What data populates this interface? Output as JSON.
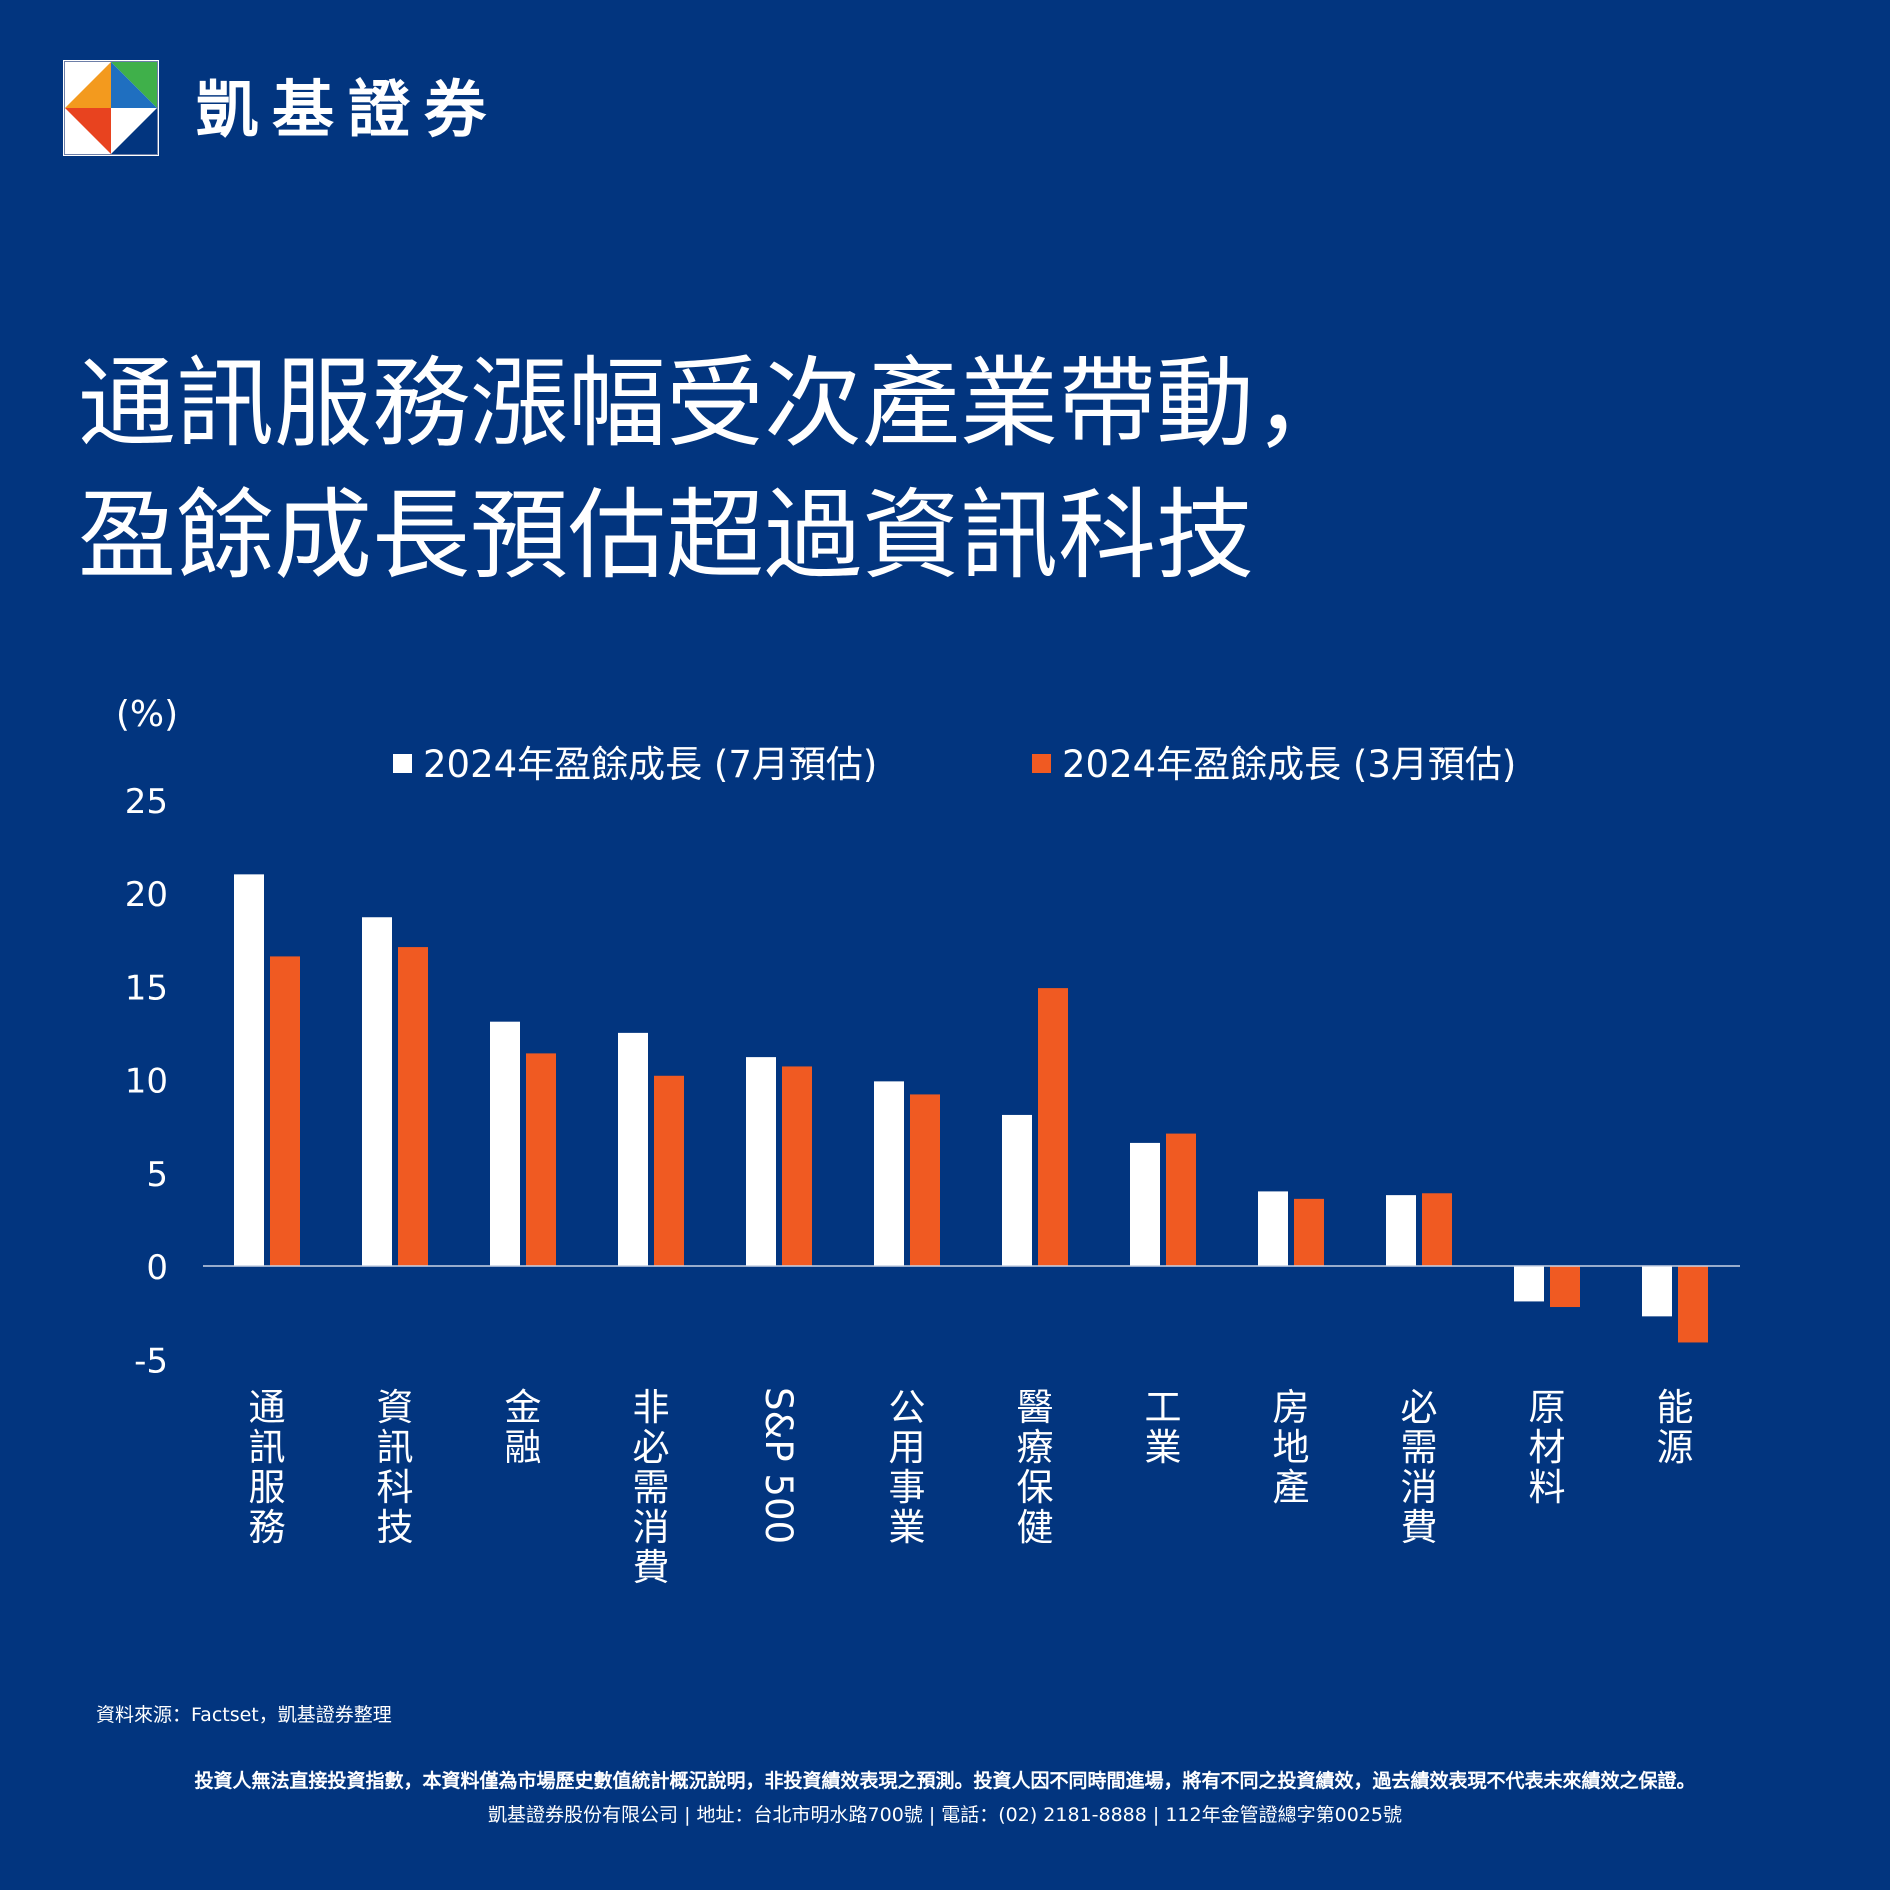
{
  "brand": {
    "name": "凱基證券"
  },
  "headline": {
    "line1": "通訊服務漲幅受次產業帶動，",
    "line2": "盈餘成長預估超過資訊科技"
  },
  "colors": {
    "background": "#02357f",
    "series_july": "#ffffff",
    "series_march": "#f05a22"
  },
  "chart_data": {
    "type": "bar",
    "title": "",
    "unit_label": "(%)",
    "xlabel": "",
    "ylabel": "",
    "ylim": [
      -5,
      25
    ],
    "yticks": [
      25,
      20,
      15,
      10,
      5,
      0,
      -5
    ],
    "grid": false,
    "legend_position": "top",
    "categories": [
      "通訊服務",
      "資訊科技",
      "金融",
      "非必需消費",
      "S&P 500",
      "公用事業",
      "醫療保健",
      "工業",
      "房地產",
      "必需消費",
      "原材料",
      "能源"
    ],
    "series": [
      {
        "name": "2024年盈餘成長 (7月預估)",
        "color": "#ffffff",
        "values": [
          21.0,
          18.7,
          13.1,
          12.5,
          11.2,
          9.9,
          8.1,
          6.6,
          4.0,
          3.8,
          -1.9,
          -2.7
        ]
      },
      {
        "name": "2024年盈餘成長 (3月預估)",
        "color": "#f05a22",
        "values": [
          16.6,
          17.1,
          11.4,
          10.2,
          10.7,
          9.2,
          14.9,
          7.1,
          3.6,
          3.9,
          -2.2,
          -4.1
        ]
      }
    ]
  },
  "footer": {
    "source": "資料來源：Factset，凱基證券整理",
    "disclaimer": "投資人無法直接投資指數，本資料僅為市場歷史數值統計概況說明，非投資績效表現之預測。投資人因不同時間進場，將有不同之投資績效，過去績效表現不代表未來績效之保證。",
    "company": "凱基證券股份有限公司 | 地址：台北市明水路700號 | 電話：(02) 2181-8888 | 112年金管證總字第0025號"
  }
}
